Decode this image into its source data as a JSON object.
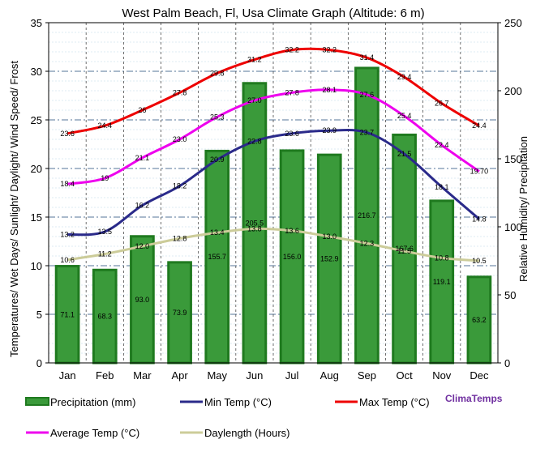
{
  "chart_data": {
    "type": "bar",
    "title": "West Palm Beach, Fl, Usa Climate Graph (Altitude: 6 m)",
    "ylabel_left": "Temperatures/ Wet Days/ Sunlight/ Daylight/ Wind Speed/ Frost",
    "ylabel_right": "Relative Humidity/ Precipitation",
    "ylim_left": [
      0,
      35
    ],
    "ylim_right": [
      0,
      250
    ],
    "left_ticks": [
      "0",
      "5",
      "10",
      "15",
      "20",
      "25",
      "30",
      "35"
    ],
    "right_ticks": [
      "0",
      "50",
      "100",
      "150",
      "200",
      "250"
    ],
    "categories": [
      "Jan",
      "Feb",
      "Mar",
      "Apr",
      "May",
      "Jun",
      "Jul",
      "Aug",
      "Sep",
      "Oct",
      "Nov",
      "Dec"
    ],
    "precipitation": {
      "name": "Precipitation (mm)",
      "values": [
        71.1,
        68.3,
        93.0,
        73.9,
        155.7,
        205.5,
        156.0,
        152.9,
        216.7,
        167.6,
        119.1,
        63.2
      ],
      "labels": [
        "71.1",
        "68.3",
        "93.0",
        "73.9",
        "155.7",
        "205.5",
        "156.0",
        "152.9",
        "216.7",
        "167.6",
        "119.1",
        "63.2"
      ]
    },
    "series": [
      {
        "name": "Max Temp (°C)",
        "values": [
          23.6,
          24.4,
          26,
          27.8,
          29.8,
          31.2,
          32.2,
          32.2,
          31.4,
          29.4,
          26.7,
          24.4
        ],
        "labels": [
          "23.6",
          "24.4",
          "26",
          "27.8",
          "29.8",
          "31.2",
          "32.2",
          "32.2",
          "31.4",
          "29.4",
          "26.7",
          "24.4"
        ]
      },
      {
        "name": "Average Temp (°C)",
        "values": [
          18.4,
          19,
          21.1,
          23.0,
          25.3,
          27.0,
          27.8,
          28.1,
          27.6,
          25.4,
          22.4,
          19.7
        ],
        "labels": [
          "18.4",
          "19",
          "21.1",
          "23.0",
          "25.3",
          "27.0",
          "27.8",
          "28.1",
          "27.6",
          "25.4",
          "22.4",
          "19.70"
        ]
      },
      {
        "name": "Min Temp (°C)",
        "values": [
          13.2,
          13.5,
          16.2,
          18.2,
          20.9,
          22.8,
          23.6,
          23.9,
          23.7,
          21.5,
          18.1,
          14.8
        ],
        "labels": [
          "13.2",
          "13.5",
          "16.2",
          "18.2",
          "20.9",
          "22.8",
          "23.6",
          "23.9",
          "23.7",
          "21.5",
          "18.1",
          "14.8"
        ]
      },
      {
        "name": "Daylength (Hours)",
        "values": [
          10.6,
          11.2,
          12.0,
          12.8,
          13.4,
          13.8,
          13.6,
          13.0,
          12.3,
          11.5,
          10.8,
          10.5
        ],
        "labels": [
          "10.6",
          "11.2",
          "12.0",
          "12.8",
          "13.4",
          "13.8",
          "13.6",
          "13.0",
          "12.3",
          "11.5",
          "10.8",
          "10.5"
        ]
      }
    ],
    "colors": {
      "precip_fill": "#3a9a3a",
      "precip_edge": "#1f7a1f",
      "max": "#ee0000",
      "avg": "#ee00ee",
      "min": "#2a2a8a",
      "daylength": "#cccc99"
    },
    "grid": true,
    "legend_placement": "bottom"
  },
  "brand": "ClimaTemps"
}
